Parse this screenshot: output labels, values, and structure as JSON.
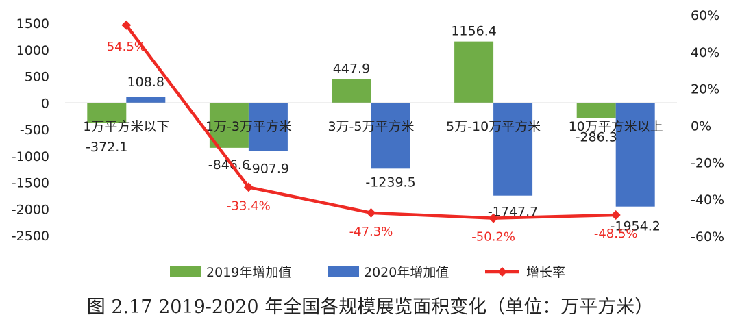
{
  "chart_data": {
    "type": "bar",
    "title": "图 2.17 2019-2020 年全国各规模展览面积变化（单位：万平方米）",
    "categories": [
      "1万平方米以下",
      "1万-3万平方米",
      "3万-5万平方米",
      "5万-10万平方米",
      "10万平方米以上"
    ],
    "series": [
      {
        "name": "2019年增加值",
        "type": "bar",
        "axis": "left",
        "color": "#70ad47",
        "values": [
          -372.1,
          -846.6,
          447.9,
          1156.4,
          -286.3
        ],
        "labels": [
          "-372.1",
          "-846.6",
          "447.9",
          "1156.4",
          "-286.3"
        ]
      },
      {
        "name": "2020年增加值",
        "type": "bar",
        "axis": "left",
        "color": "#4472c4",
        "values": [
          108.8,
          -907.9,
          -1239.5,
          -1747.7,
          -1954.2
        ],
        "labels": [
          "108.8",
          "-907.9",
          "-1239.5",
          "-1747.7",
          "-1954.2"
        ]
      },
      {
        "name": "增长率",
        "type": "line",
        "axis": "right",
        "color": "#ee2a24",
        "marker": "diamond",
        "values": [
          54.5,
          -33.4,
          -47.3,
          -50.2,
          -48.5
        ],
        "labels": [
          "54.5%",
          "-33.4%",
          "-47.3%",
          "-50.2%",
          "-48.5%"
        ]
      }
    ],
    "y_left": {
      "min": -2500,
      "max": 1500,
      "ticks": [
        "1500",
        "1000",
        "500",
        "0",
        "-500",
        "-1000",
        "-1500",
        "-2000",
        "-2500"
      ]
    },
    "y_right": {
      "min": -60,
      "max": 60,
      "ticks": [
        "60%",
        "40%",
        "20%",
        "0%",
        "-20%",
        "-40%",
        "-60%"
      ]
    },
    "grid": false,
    "legend_position": "bottom"
  }
}
